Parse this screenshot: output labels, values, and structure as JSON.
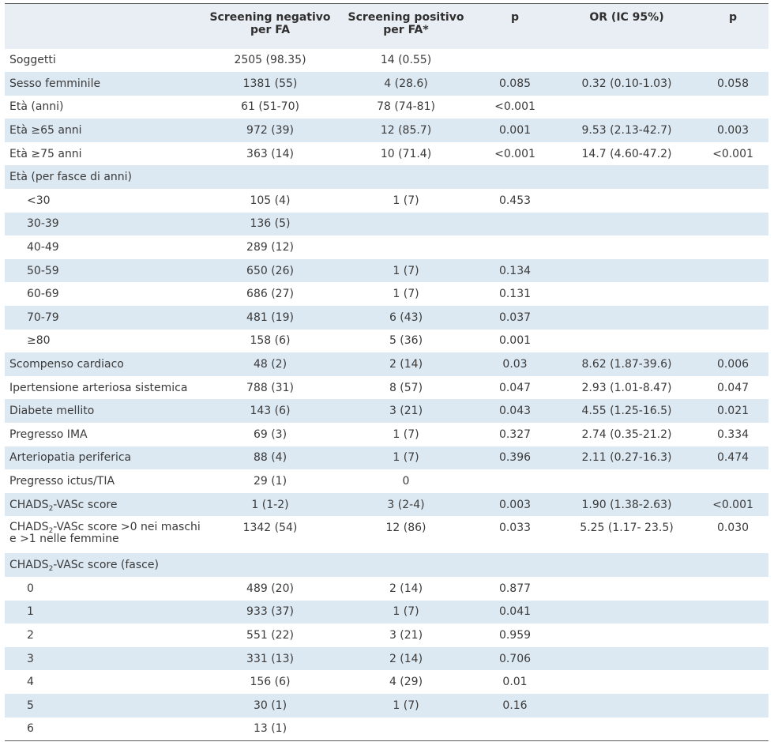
{
  "header": {
    "col0": "",
    "col1_line1": "Screening negativo",
    "col1_line2": "per FA",
    "col2_line1": "Screening positivo",
    "col2_line2": "per FA*",
    "col3": "p",
    "col4": "OR (IC 95%)",
    "col5": "p"
  },
  "rows": [
    {
      "label": "Soggetti",
      "neg": "2505 (98.35)",
      "pos": "14 (0.55)",
      "p": "",
      "or": "",
      "p2": ""
    },
    {
      "label": "Sesso femminile",
      "neg": "1381 (55)",
      "pos": "4 (28.6)",
      "p": "0.085",
      "or": "0.32 (0.10-1.03)",
      "p2": "0.058"
    },
    {
      "label": "Età (anni)",
      "neg": "61 (51-70)",
      "pos": "78 (74-81)",
      "p": "<0.001",
      "or": "",
      "p2": ""
    },
    {
      "label": "Età ≥65 anni",
      "neg": "972 (39)",
      "pos": "12 (85.7)",
      "p": "0.001",
      "or": "9.53 (2.13-42.7)",
      "p2": "0.003"
    },
    {
      "label": "Età ≥75 anni",
      "neg": "363 (14)",
      "pos": "10 (71.4)",
      "p": "<0.001",
      "or": "14.7 (4.60-47.2)",
      "p2": "<0.001"
    },
    {
      "label": "Età (per fasce di anni)",
      "neg": "",
      "pos": "",
      "p": "",
      "or": "",
      "p2": ""
    },
    {
      "label": "<30",
      "neg": "105 (4)",
      "pos": "1 (7)",
      "p": "0.453",
      "or": "",
      "p2": ""
    },
    {
      "label": "30-39",
      "neg": "136 (5)",
      "pos": "",
      "p": "",
      "or": "",
      "p2": ""
    },
    {
      "label": "40-49",
      "neg": "289 (12)",
      "pos": "",
      "p": "",
      "or": "",
      "p2": ""
    },
    {
      "label": "50-59",
      "neg": "650 (26)",
      "pos": "1 (7)",
      "p": "0.134",
      "or": "",
      "p2": ""
    },
    {
      "label": "60-69",
      "neg": "686 (27)",
      "pos": "1 (7)",
      "p": "0.131",
      "or": "",
      "p2": ""
    },
    {
      "label": "70-79",
      "neg": "481 (19)",
      "pos": "6 (43)",
      "p": "0.037",
      "or": "",
      "p2": ""
    },
    {
      "label": "≥80",
      "neg": "158 (6)",
      "pos": "5 (36)",
      "p": "0.001",
      "or": "",
      "p2": ""
    },
    {
      "label": "Scompenso cardiaco",
      "neg": "48 (2)",
      "pos": "2 (14)",
      "p": "0.03",
      "or": "8.62 (1.87-39.6)",
      "p2": "0.006"
    },
    {
      "label": "Ipertensione arteriosa sistemica",
      "neg": "788 (31)",
      "pos": "8 (57)",
      "p": "0.047",
      "or": "2.93 (1.01-8.47)",
      "p2": "0.047"
    },
    {
      "label": "Diabete mellito",
      "neg": "143 (6)",
      "pos": "3 (21)",
      "p": "0.043",
      "or": "4.55 (1.25-16.5)",
      "p2": "0.021"
    },
    {
      "label": "Pregresso IMA",
      "neg": "69 (3)",
      "pos": "1 (7)",
      "p": "0.327",
      "or": "2.74 (0.35-21.2)",
      "p2": "0.334"
    },
    {
      "label": "Arteriopatia periferica",
      "neg": "88 (4)",
      "pos": "1 (7)",
      "p": "0.396",
      "or": "2.11 (0.27-16.3)",
      "p2": "0.474"
    },
    {
      "label": "Pregresso ictus/TIA",
      "neg": "29 (1)",
      "pos": "0",
      "p": "",
      "or": "",
      "p2": ""
    },
    {
      "label_a": "CHA",
      "label_b": "DS",
      "label_c": "-VASc score",
      "neg": "1 (1-2)",
      "pos": "3 (2-4)",
      "p": "0.003",
      "or": "1.90 (1.38-2.63)",
      "p2": "<0.001"
    },
    {
      "label_a": "CHA",
      "label_b": "DS",
      "label_c": "-VASc score >0 nei maschi e >1 nelle femmine",
      "neg": "1342 (54)",
      "pos": "12 (86)",
      "p": "0.033",
      "or": "5.25 (1.17- 23.5)",
      "p2": "0.030"
    },
    {
      "label_a": "CHA",
      "label_b": "DS",
      "label_c": "-VASc score (fasce)",
      "neg": "",
      "pos": "",
      "p": "",
      "or": "",
      "p2": ""
    },
    {
      "label": "0",
      "neg": "489 (20)",
      "pos": "2 (14)",
      "p": "0.877",
      "or": "",
      "p2": ""
    },
    {
      "label": "1",
      "neg": "933 (37)",
      "pos": "1 (7)",
      "p": "0.041",
      "or": "",
      "p2": ""
    },
    {
      "label": "2",
      "neg": "551 (22)",
      "pos": "3 (21)",
      "p": "0.959",
      "or": "",
      "p2": ""
    },
    {
      "label": "3",
      "neg": "331 (13)",
      "pos": "2 (14)",
      "p": "0.706",
      "or": "",
      "p2": ""
    },
    {
      "label": "4",
      "neg": "156 (6)",
      "pos": "4 (29)",
      "p": "0.01",
      "or": "",
      "p2": ""
    },
    {
      "label": "5",
      "neg": "30 (1)",
      "pos": "1 (7)",
      "p": "0.16",
      "or": "",
      "p2": ""
    },
    {
      "label": "6",
      "neg": "13 (1)",
      "pos": "",
      "p": "",
      "or": "",
      "p2": ""
    }
  ],
  "subscripts": {
    "two": "2"
  },
  "colors": {
    "header_bg": "#e8eef3",
    "stripe_bg": "#dde9f2",
    "text": "#3a3a3a",
    "rule": "#5a5a5a"
  }
}
